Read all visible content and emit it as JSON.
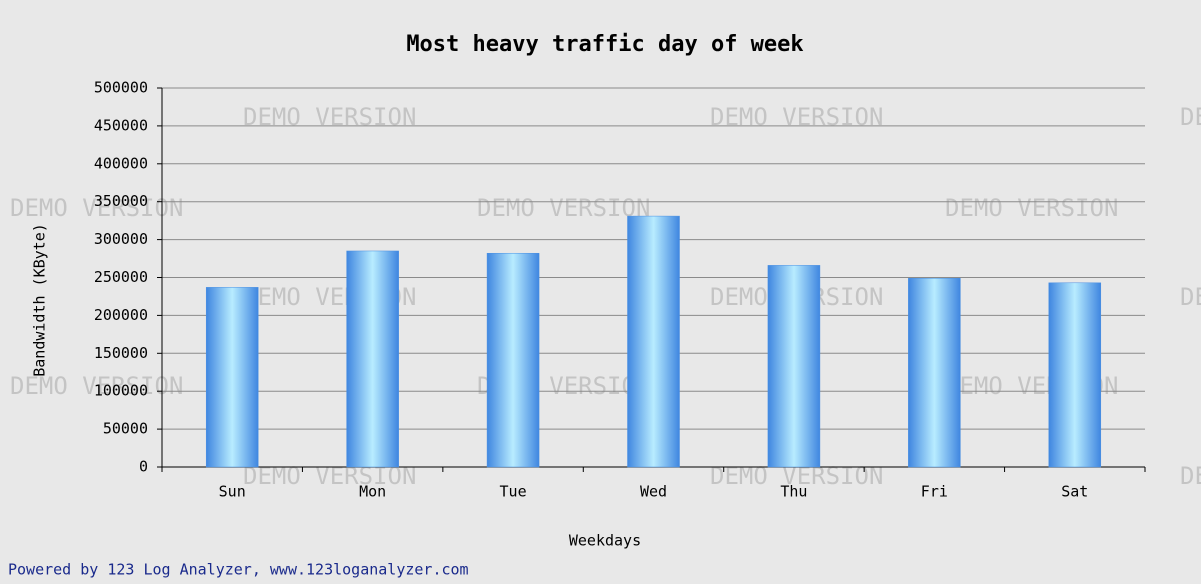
{
  "chart_data": {
    "type": "bar",
    "title": "Most heavy traffic day of week",
    "xlabel": "Weekdays",
    "ylabel": "Bandwidth (KByte)",
    "categories": [
      "Sun",
      "Mon",
      "Tue",
      "Wed",
      "Thu",
      "Fri",
      "Sat"
    ],
    "values": [
      237000,
      285000,
      282000,
      331000,
      266000,
      249000,
      243000
    ],
    "color": "#4a90e2",
    "ylim": [
      0,
      500000
    ],
    "yticks": [
      0,
      50000,
      100000,
      150000,
      200000,
      250000,
      300000,
      350000,
      400000,
      450000,
      500000
    ],
    "grid": true,
    "watermark": "DEMO VERSION",
    "footer": "Powered by 123 Log Analyzer, www.123loganalyzer.com"
  }
}
